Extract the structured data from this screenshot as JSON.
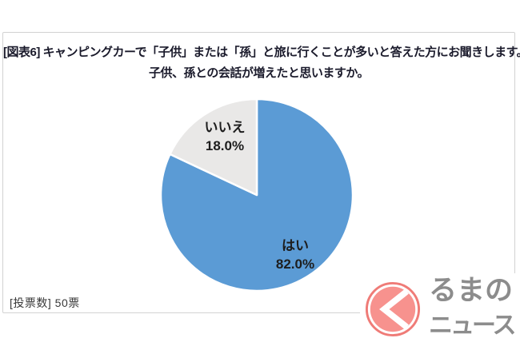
{
  "page": {
    "background": "#ffffff",
    "panel_border": "#d2d2d2"
  },
  "chart_data": {
    "type": "pie",
    "title": "[図表6] キャンピングカーで「子供」または「孫」と旅に行くことが多いと答えた方にお聞きします。子供、孫との会話が増えたと思いますか。",
    "title_lines": [
      "[図表6] キャンピングカーで「子供」または「孫」と旅に行くことが多いと答えた方にお聞きします。",
      "子供、孫との会話が増えたと思いますか。"
    ],
    "slices": [
      {
        "label": "はい",
        "value": 82.0,
        "display": "82.0%",
        "color": "#5B9BD5"
      },
      {
        "label": "いいえ",
        "value": 18.0,
        "display": "18.0%",
        "color": "#E9E8E7"
      }
    ],
    "start_angle_deg": 0,
    "direction": "clockwise",
    "slice_stroke": "#ffffff",
    "labels_position": "inside",
    "legend": "none",
    "label_color": "#1d1d1d"
  },
  "footer": {
    "votes_label": "[投票数] 50票"
  },
  "logo": {
    "name": "くるまのニュース",
    "line1": "るまの",
    "line2": "ニュース",
    "pink": "#F7928E",
    "ring_pink": "#EF7B77",
    "carve_white": "#ffffff",
    "text_gray": "#8C8C8C"
  }
}
